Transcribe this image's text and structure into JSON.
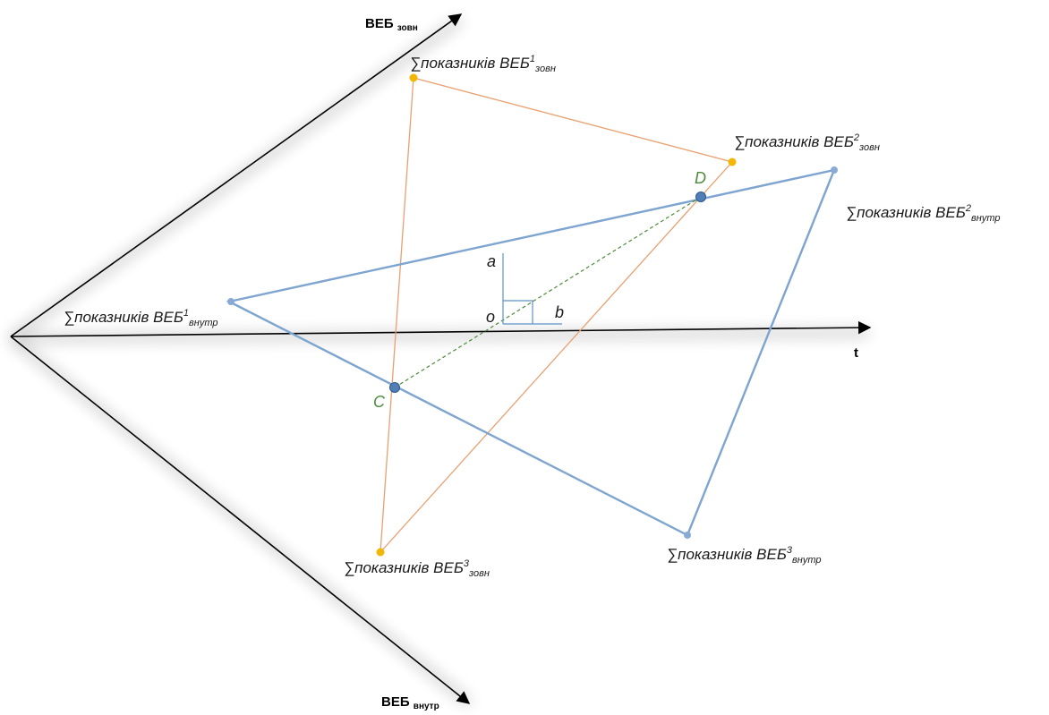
{
  "axes": {
    "ext": {
      "main": "ВЕБ",
      "sub": "зовн"
    },
    "int": {
      "main": "ВЕБ",
      "sub": "внутр"
    },
    "time": {
      "label": "t"
    }
  },
  "ext_points": [
    {
      "prefix": "∑показників ВЕБ",
      "sup": "1",
      "sub": "зовн"
    },
    {
      "prefix": "∑показників ВЕБ",
      "sup": "2",
      "sub": "зовн"
    },
    {
      "prefix": "∑показників ВЕБ",
      "sup": "3",
      "sub": "зовн"
    }
  ],
  "int_points": [
    {
      "prefix": "∑показників ВЕБ",
      "sup": "1",
      "sub": "внутр"
    },
    {
      "prefix": "∑показників ВЕБ",
      "sup": "2",
      "sub": "внутр"
    },
    {
      "prefix": "∑показників ВЕБ",
      "sup": "3",
      "sub": "внутр"
    }
  ],
  "intersections": {
    "C": "C",
    "D": "D"
  },
  "vectors": {
    "a": "a",
    "b": "b",
    "o": "o"
  },
  "colors": {
    "ext_triangle": "#e8a070",
    "ext_point": "#f2b705",
    "int_triangle": "#7ea4d0",
    "int_point": "#8aaad6",
    "intersection": "#4f7fb5",
    "dashed": "#4e8a3c",
    "axis": "#000000"
  }
}
